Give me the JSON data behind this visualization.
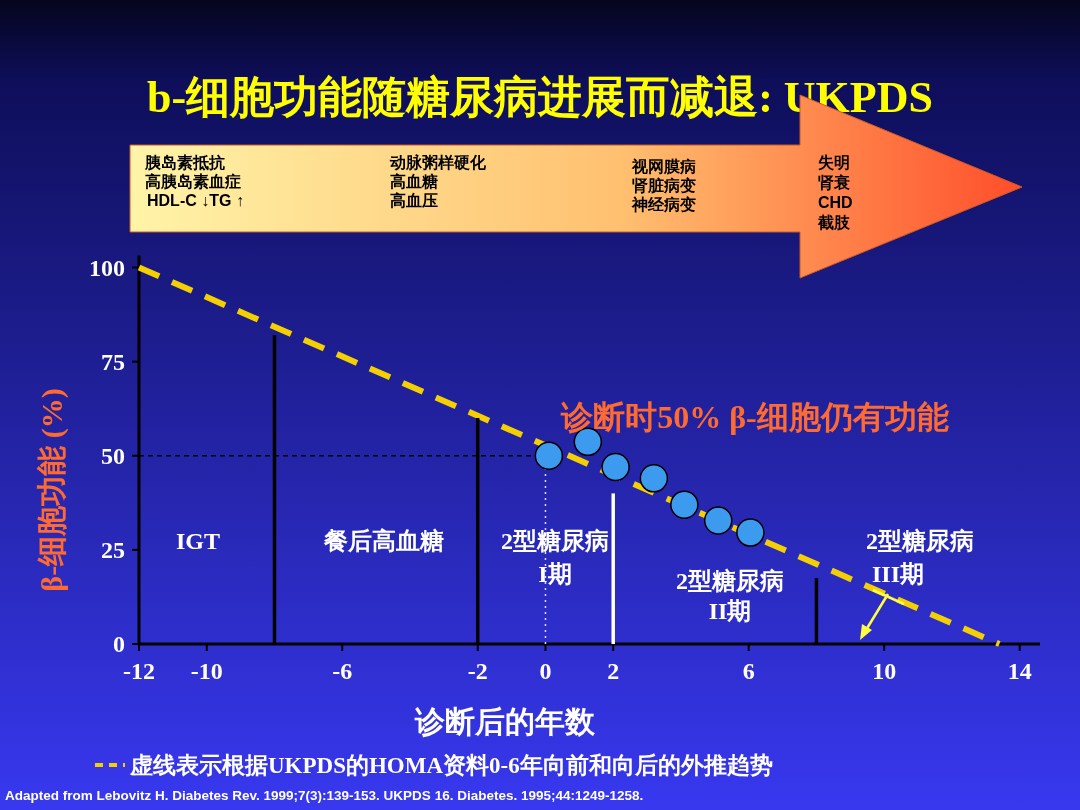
{
  "chart_data": {
    "type": "scatter",
    "title": "b-细胞功能随糖尿病进展而减退: UKPDS",
    "xlabel": "诊断后的年数",
    "ylabel": "β-细胞功能 (%)",
    "xlim": [
      -12,
      14.6
    ],
    "ylim": [
      0,
      100
    ],
    "xticks": [
      -12,
      -10,
      -6,
      -2,
      0,
      2,
      6,
      10,
      14
    ],
    "yticks": [
      0,
      25,
      50,
      75,
      100
    ],
    "grid": false,
    "legend": "bottom",
    "series": [
      {
        "type": "line",
        "name": "虚线表示根据UKPDS的HOMA资料0-6年向前和向后的外推趋势",
        "color": "#f5d000",
        "line_style": "dashed",
        "marker": "none",
        "x": [
          -12,
          13.4
        ],
        "values": [
          100,
          0
        ]
      },
      {
        "color": "#3d9bef",
        "marker": "circle",
        "x": [
          0.1,
          1.25,
          2.07,
          3.2,
          4.1,
          5.1,
          6.05
        ],
        "values": [
          50,
          53.7,
          47,
          44,
          37,
          32.8,
          29.6
        ]
      },
      {
        "type": "line",
        "color": "#000000",
        "line_style": "solid",
        "marker": "none",
        "x": [
          -8,
          -8
        ],
        "values": [
          0,
          82
        ]
      },
      {
        "type": "line",
        "color": "#000000",
        "line_style": "solid",
        "marker": "none",
        "x": [
          -2,
          -2
        ],
        "values": [
          0,
          60
        ]
      },
      {
        "type": "line",
        "color": "#ffffff",
        "line_style": "solid",
        "marker": "none",
        "x": [
          2,
          2
        ],
        "values": [
          0,
          40
        ]
      },
      {
        "type": "line",
        "color": "#000000",
        "line_style": "solid",
        "marker": "none",
        "x": [
          8,
          8
        ],
        "values": [
          0,
          17.5
        ]
      },
      {
        "type": "line",
        "color": "#e0e0e0",
        "line_style": "dotted",
        "marker": "none",
        "x": [
          0,
          0
        ],
        "values": [
          0,
          46.5
        ]
      },
      {
        "type": "line",
        "color": "#000000",
        "line_style": "dashed",
        "marker": "none",
        "x": [
          -12,
          -0.4
        ],
        "values": [
          50,
          50
        ]
      }
    ],
    "annotations": [
      "胰岛素抵抗",
      "高胰岛素血症",
      "HDL-C ↓TG ↑",
      "动脉粥样硬化",
      "高血糖",
      "高血压",
      "视网膜病",
      "肾脏病变",
      "神经病变",
      "失明",
      "肾衰",
      "CHD",
      "截肢",
      "诊断时50% β-细胞仍有功能",
      "IGT",
      "餐后高血糖",
      "2型糖尿病",
      "I期",
      "2型糖尿病",
      "II期",
      "2型糖尿病",
      "III期",
      "Adapted from Lebovitz H. Diabetes Rev. 1999;7(3):139-153. UKPDS 16. Diabetes. 1995;44:1249-1258."
    ]
  }
}
